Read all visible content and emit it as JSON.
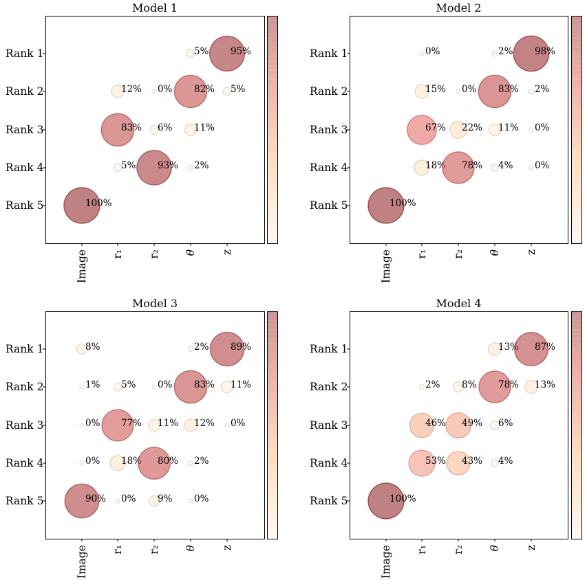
{
  "chart_data": [
    {
      "type": "bubble",
      "title": "Model 1",
      "ylabels": [
        "Rank 1",
        "Rank 2",
        "Rank 3",
        "Rank 4",
        "Rank 5"
      ],
      "xlabels": [
        "Image",
        "r₁",
        "r₂",
        "θ",
        "z"
      ],
      "values": [
        [
          null,
          null,
          null,
          5,
          95
        ],
        [
          null,
          12,
          0,
          82,
          5
        ],
        [
          null,
          83,
          6,
          11,
          null
        ],
        [
          null,
          5,
          93,
          2,
          null
        ],
        [
          100,
          null,
          null,
          null,
          null
        ]
      ],
      "labels": [
        [
          null,
          null,
          null,
          "5%",
          "95%"
        ],
        [
          null,
          "12%",
          "0%",
          "82%",
          "5%"
        ],
        [
          null,
          "83%",
          "6%",
          "11%",
          null
        ],
        [
          null,
          "5%",
          "93%",
          "2%",
          null
        ],
        [
          "100%",
          null,
          null,
          null,
          null
        ]
      ]
    },
    {
      "type": "bubble",
      "title": "Model 2",
      "ylabels": [
        "Rank 1",
        "Rank 2",
        "Rank 3",
        "Rank 4",
        "Rank 5"
      ],
      "xlabels": [
        "Image",
        "r₁",
        "r₂",
        "θ",
        "z"
      ],
      "values": [
        [
          null,
          0,
          null,
          2,
          98
        ],
        [
          null,
          15,
          0,
          83,
          2
        ],
        [
          null,
          67,
          22,
          11,
          0
        ],
        [
          null,
          18,
          78,
          4,
          0
        ],
        [
          100,
          null,
          null,
          null,
          null
        ]
      ],
      "labels": [
        [
          null,
          "0%",
          null,
          "2%",
          "98%"
        ],
        [
          null,
          "15%",
          "0%",
          "83%",
          "2%"
        ],
        [
          null,
          "67%",
          "22%",
          "11%",
          "0%"
        ],
        [
          null,
          "18%",
          "78%",
          "4%",
          "0%"
        ],
        [
          "100%",
          null,
          null,
          null,
          null
        ]
      ]
    },
    {
      "type": "bubble",
      "title": "Model 3",
      "ylabels": [
        "Rank 1",
        "Rank 2",
        "Rank 3",
        "Rank 4",
        "Rank 5"
      ],
      "xlabels": [
        "Image",
        "r₁",
        "r₂",
        "θ",
        "z"
      ],
      "values": [
        [
          8,
          null,
          null,
          2,
          89
        ],
        [
          1,
          5,
          0,
          83,
          11
        ],
        [
          0,
          77,
          11,
          12,
          0
        ],
        [
          0,
          18,
          80,
          2,
          null
        ],
        [
          90,
          0,
          9,
          0,
          null
        ]
      ],
      "labels": [
        [
          "8%",
          null,
          null,
          "2%",
          "89%"
        ],
        [
          "1%",
          "5%",
          "0%",
          "83%",
          "11%"
        ],
        [
          "0%",
          "77%",
          "11%",
          "12%",
          "0%"
        ],
        [
          "0%",
          "18%",
          "80%",
          "2%",
          null
        ],
        [
          "90%",
          "0%",
          "9%",
          "0%",
          null
        ]
      ]
    },
    {
      "type": "bubble",
      "title": "Model 4",
      "ylabels": [
        "Rank 1",
        "Rank 2",
        "Rank 3",
        "Rank 4",
        "Rank 5"
      ],
      "xlabels": [
        "Image",
        "r₁",
        "r₂",
        "θ",
        "z"
      ],
      "values": [
        [
          null,
          null,
          null,
          13,
          87
        ],
        [
          null,
          2,
          8,
          78,
          13
        ],
        [
          null,
          46,
          49,
          6,
          null
        ],
        [
          null,
          53,
          43,
          4,
          null
        ],
        [
          100,
          null,
          null,
          null,
          null
        ]
      ],
      "labels": [
        [
          null,
          null,
          null,
          "13%",
          "87%"
        ],
        [
          null,
          "2%",
          "8%",
          "78%",
          "13%"
        ],
        [
          null,
          "46%",
          "49%",
          "6%",
          null
        ],
        [
          null,
          "53%",
          "43%",
          "4%",
          null
        ],
        [
          "100%",
          null,
          null,
          null,
          null
        ]
      ]
    }
  ],
  "colors": {
    "low": "#fff5eb",
    "mid": "#fdd0a2",
    "high": "#e05a5a",
    "top": "#8b1a1a",
    "edge_scale": "darker"
  }
}
